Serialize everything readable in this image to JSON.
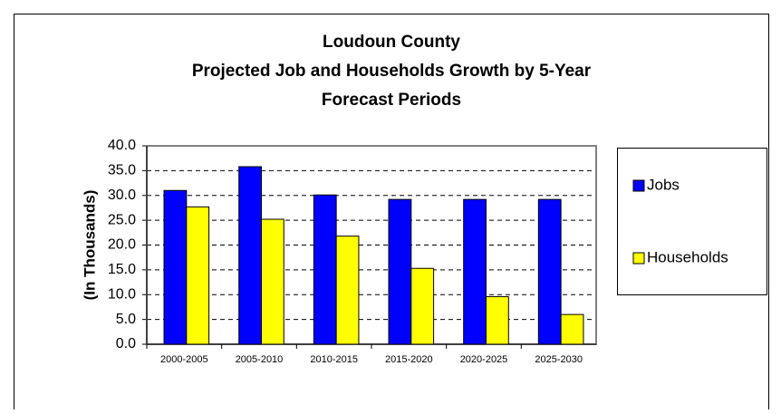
{
  "chart_data": {
    "type": "bar",
    "title": [
      "Loudoun County",
      "Projected Job and Households Growth by 5-Year",
      "Forecast Periods"
    ],
    "y_label": "(In Thousands)",
    "categories": [
      "2000-2005",
      "2005-2010",
      "2010-2015",
      "2015-2020",
      "2020-2025",
      "2025-2030"
    ],
    "series": [
      {
        "name": "Jobs",
        "color": "#0000ff",
        "values": [
          31.0,
          35.8,
          30.1,
          29.2,
          29.2,
          29.2
        ]
      },
      {
        "name": "Households",
        "color": "#ffff00",
        "values": [
          27.7,
          25.2,
          21.8,
          15.3,
          9.6,
          6.0
        ]
      }
    ],
    "ylim": [
      0,
      40
    ],
    "yticks": [
      {
        "value": 0,
        "label": "0.0"
      },
      {
        "value": 5,
        "label": "5.0"
      },
      {
        "value": 10,
        "label": "10.0"
      },
      {
        "value": 15,
        "label": "15.0"
      },
      {
        "value": 20,
        "label": "20.0"
      },
      {
        "value": 25,
        "label": "25.0"
      },
      {
        "value": 30,
        "label": "30.0"
      },
      {
        "value": 35,
        "label": "35.0"
      },
      {
        "value": 40,
        "label": "40.0"
      }
    ],
    "grid": true,
    "legend": "right"
  }
}
